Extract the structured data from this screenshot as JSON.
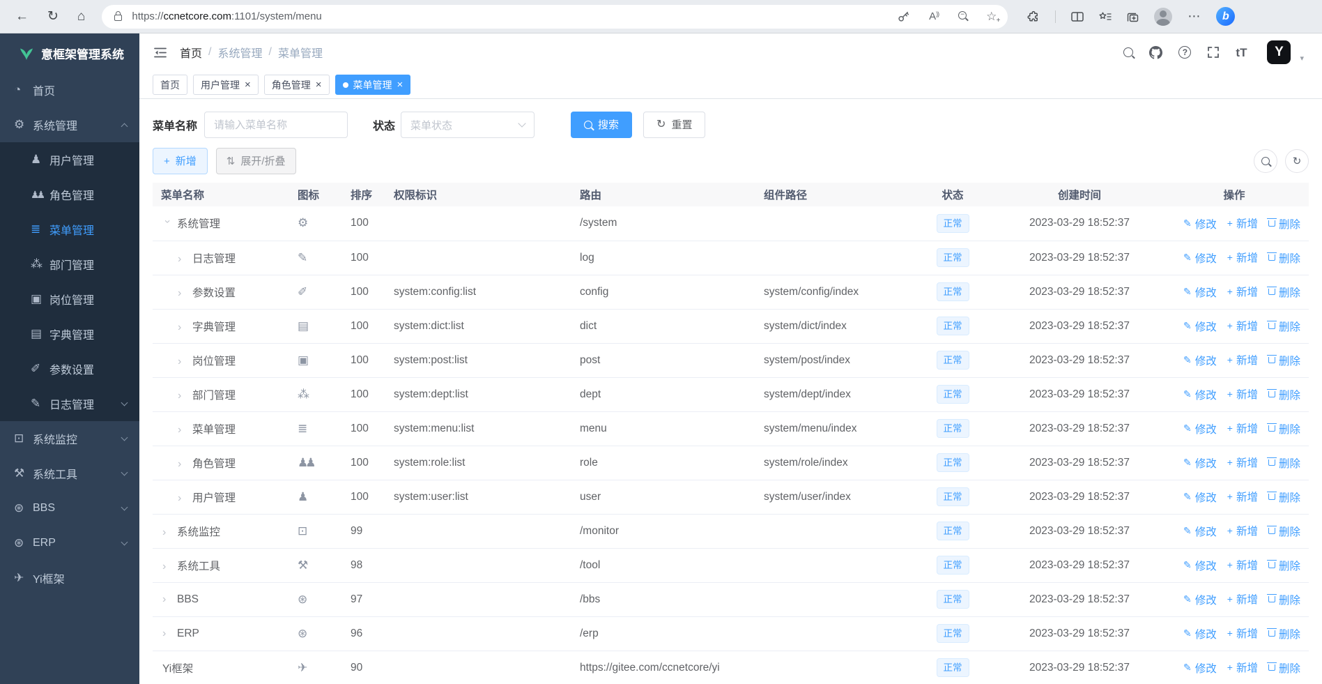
{
  "colors": {
    "accent": "#409eff",
    "sidebar_bg": "#304156",
    "submenu_bg": "#1f2d3d",
    "sidebar_text": "#bfcbd9",
    "tag_bg": "#ecf5ff",
    "tag_border": "#d9ecff",
    "logo_green": "#43c495",
    "bing_blue": "#1a6aff"
  },
  "icons": {
    "back": "←",
    "refresh": "↻",
    "home": "⌂",
    "close": "×",
    "caret_down": "▾",
    "expand_arrow": "›",
    "plus": "+",
    "sort": "⇅",
    "edit": "✎",
    "question": "?",
    "font_size": "tT",
    "logo_letter": "Y",
    "bing_letter": "b",
    "ellipsis": "⋯",
    "star": "☆",
    "read_aloud": "A",
    "read_aloud_waves": "))"
  },
  "browser": {
    "url_scheme": "https://",
    "url_host": "ccnetcore.com",
    "url_rest": ":1101/system/menu"
  },
  "sidebar": {
    "title": "意框架管理系统",
    "items": [
      {
        "label": "首页",
        "icon": "dashboard-icon",
        "glyph": "◔"
      },
      {
        "label": "系统管理",
        "icon": "gear-icon",
        "glyph": "⚙",
        "expanded": true,
        "children": [
          {
            "label": "用户管理",
            "icon": "user-icon",
            "glyph": "♟"
          },
          {
            "label": "角色管理",
            "icon": "users-icon",
            "glyph": "♟♟"
          },
          {
            "label": "菜单管理",
            "icon": "menu-list-icon",
            "glyph": "≣",
            "active": true
          },
          {
            "label": "部门管理",
            "icon": "org-tree-icon",
            "glyph": "⁂"
          },
          {
            "label": "岗位管理",
            "icon": "badge-icon",
            "glyph": "▣"
          },
          {
            "label": "字典管理",
            "icon": "book-icon",
            "glyph": "▤"
          },
          {
            "label": "参数设置",
            "icon": "edit-icon",
            "glyph": "✐"
          },
          {
            "label": "日志管理",
            "icon": "log-icon",
            "glyph": "✎",
            "has_children": true
          }
        ]
      },
      {
        "label": "系统监控",
        "icon": "monitor-icon",
        "glyph": "⊡",
        "has_children": true
      },
      {
        "label": "系统工具",
        "icon": "toolbox-icon",
        "glyph": "⚒",
        "has_children": true
      },
      {
        "label": "BBS",
        "icon": "globe-icon",
        "glyph": "⊛",
        "has_children": true
      },
      {
        "label": "ERP",
        "icon": "globe-icon",
        "glyph": "⊛",
        "has_children": true
      },
      {
        "label": "Yi框架",
        "icon": "send-icon",
        "glyph": "✈"
      }
    ]
  },
  "header": {
    "breadcrumb": [
      "首页",
      "系统管理",
      "菜单管理"
    ]
  },
  "tabs": [
    {
      "label": "首页"
    },
    {
      "label": "用户管理",
      "closable": true
    },
    {
      "label": "角色管理",
      "closable": true
    },
    {
      "label": "菜单管理",
      "closable": true,
      "active": true
    }
  ],
  "filters": {
    "name_label": "菜单名称",
    "name_placeholder": "请输入菜单名称",
    "status_label": "状态",
    "status_placeholder": "菜单状态",
    "search_label": "搜索",
    "reset_label": "重置"
  },
  "toolbar": {
    "add_label": "新增",
    "toggle_label": "展开/折叠"
  },
  "table": {
    "columns": [
      "菜单名称",
      "图标",
      "排序",
      "权限标识",
      "路由",
      "组件路径",
      "状态",
      "创建时间",
      "操作"
    ],
    "status_normal": "正常",
    "created": "2023-03-29 18:52:37",
    "actions": {
      "edit": "修改",
      "add": "新增",
      "remove": "删除"
    },
    "rows": [
      {
        "name": "系统管理",
        "icon": "gear-icon",
        "glyph": "⚙",
        "sort": "100",
        "perms": "",
        "route": "/system",
        "component": "",
        "level": 0,
        "expanded": true
      },
      {
        "name": "日志管理",
        "icon": "log-icon",
        "glyph": "✎",
        "sort": "100",
        "perms": "",
        "route": "log",
        "component": "",
        "level": 1
      },
      {
        "name": "参数设置",
        "icon": "edit-icon",
        "glyph": "✐",
        "sort": "100",
        "perms": "system:config:list",
        "route": "config",
        "component": "system/config/index",
        "level": 1
      },
      {
        "name": "字典管理",
        "icon": "book-icon",
        "glyph": "▤",
        "sort": "100",
        "perms": "system:dict:list",
        "route": "dict",
        "component": "system/dict/index",
        "level": 1
      },
      {
        "name": "岗位管理",
        "icon": "badge-icon",
        "glyph": "▣",
        "sort": "100",
        "perms": "system:post:list",
        "route": "post",
        "component": "system/post/index",
        "level": 1
      },
      {
        "name": "部门管理",
        "icon": "org-tree-icon",
        "glyph": "⁂",
        "sort": "100",
        "perms": "system:dept:list",
        "route": "dept",
        "component": "system/dept/index",
        "level": 1
      },
      {
        "name": "菜单管理",
        "icon": "menu-list-icon",
        "glyph": "≣",
        "sort": "100",
        "perms": "system:menu:list",
        "route": "menu",
        "component": "system/menu/index",
        "level": 1
      },
      {
        "name": "角色管理",
        "icon": "users-icon",
        "glyph": "♟♟",
        "sort": "100",
        "perms": "system:role:list",
        "route": "role",
        "component": "system/role/index",
        "level": 1
      },
      {
        "name": "用户管理",
        "icon": "user-icon",
        "glyph": "♟",
        "sort": "100",
        "perms": "system:user:list",
        "route": "user",
        "component": "system/user/index",
        "level": 1
      },
      {
        "name": "系统监控",
        "icon": "monitor-icon",
        "glyph": "⊡",
        "sort": "99",
        "perms": "",
        "route": "/monitor",
        "component": "",
        "level": 0
      },
      {
        "name": "系统工具",
        "icon": "toolbox-icon",
        "glyph": "⚒",
        "sort": "98",
        "perms": "",
        "route": "/tool",
        "component": "",
        "level": 0
      },
      {
        "name": "BBS",
        "icon": "globe-icon",
        "glyph": "⊛",
        "sort": "97",
        "perms": "",
        "route": "/bbs",
        "component": "",
        "level": 0
      },
      {
        "name": "ERP",
        "icon": "globe-icon",
        "glyph": "⊛",
        "sort": "96",
        "perms": "",
        "route": "/erp",
        "component": "",
        "level": 0
      },
      {
        "name": "Yi框架",
        "icon": "send-icon",
        "glyph": "✈",
        "sort": "90",
        "perms": "",
        "route": "https://gitee.com/ccnetcore/yi",
        "component": "",
        "level": 0,
        "leaf": true
      }
    ]
  }
}
